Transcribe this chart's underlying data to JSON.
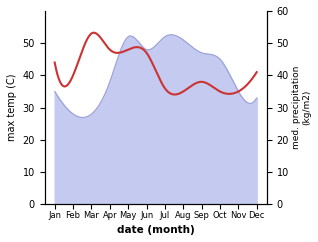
{
  "months": [
    "Jan",
    "Feb",
    "Mar",
    "Apr",
    "May",
    "Jun",
    "Jul",
    "Aug",
    "Sep",
    "Oct",
    "Nov",
    "Dec"
  ],
  "temperature": [
    44,
    40,
    53,
    48,
    48,
    47,
    36,
    35,
    38,
    35,
    35,
    41
  ],
  "precipitation": [
    35,
    28,
    28,
    38,
    52,
    48,
    52,
    51,
    47,
    45,
    35,
    33
  ],
  "temp_color": "#cc3333",
  "precip_fill_color": "#c5caf0",
  "precip_line_color": "#9aa0d8",
  "ylabel_left": "max temp (C)",
  "ylabel_right": "med. precipitation\n(kg/m2)",
  "xlabel": "date (month)",
  "ylim": [
    0,
    60
  ],
  "yticks_left": [
    0,
    10,
    20,
    30,
    40,
    50
  ],
  "yticks_right": [
    0,
    10,
    20,
    30,
    40,
    50,
    60
  ]
}
